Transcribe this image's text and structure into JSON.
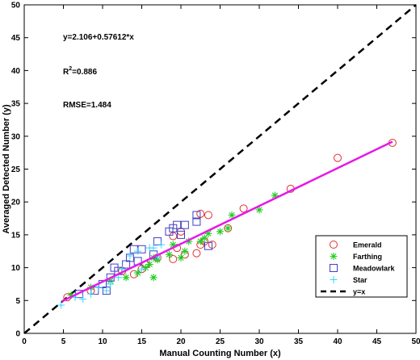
{
  "chart_data": {
    "type": "scatter",
    "title": "",
    "xlabel": "Manual Counting Number (x)",
    "ylabel": "Averaged Detected Number (y)",
    "xlim": [
      0,
      50
    ],
    "ylim": [
      0,
      50
    ],
    "xticks": [
      0,
      5,
      10,
      15,
      20,
      25,
      30,
      35,
      40,
      45,
      50
    ],
    "yticks": [
      0,
      5,
      10,
      15,
      20,
      25,
      30,
      35,
      40,
      45,
      50
    ],
    "grid": false,
    "legend_position": "bottom-right",
    "annotations": [
      "y=2.106+0.57612*x",
      "RMSE=1.484"
    ],
    "r2": {
      "prefix": "R",
      "superscript": "2",
      "suffix": "=0.886"
    },
    "fit": {
      "label": "",
      "intercept": 2.106,
      "slope": 0.57612,
      "x_range": [
        4.8,
        47
      ],
      "color": "#e619e6"
    },
    "reference": {
      "name": "y=x",
      "x_range": [
        0,
        50
      ],
      "color": "#000000"
    },
    "series": [
      {
        "name": "Emerald",
        "marker": "circle",
        "color": "#e03030",
        "points": [
          [
            5.5,
            5.5
          ],
          [
            8.5,
            6.5
          ],
          [
            12.5,
            9.5
          ],
          [
            14,
            9
          ],
          [
            15,
            9.8
          ],
          [
            15.5,
            10.5
          ],
          [
            17,
            11.5
          ],
          [
            19,
            11.3
          ],
          [
            19.5,
            13
          ],
          [
            20,
            15.5
          ],
          [
            20.5,
            12
          ],
          [
            22,
            12.2
          ],
          [
            22.5,
            18.2
          ],
          [
            23,
            14
          ],
          [
            23.5,
            18
          ],
          [
            24,
            13.5
          ],
          [
            22.5,
            13.5
          ],
          [
            26,
            16
          ],
          [
            28,
            19
          ],
          [
            34,
            22
          ],
          [
            40,
            26.7
          ],
          [
            47,
            29
          ],
          [
            19,
            14.8
          ]
        ]
      },
      {
        "name": "Farthing",
        "marker": "asterisk",
        "color": "#22cc22",
        "points": [
          [
            6,
            5.8
          ],
          [
            8.5,
            7
          ],
          [
            11,
            8
          ],
          [
            13,
            8.5
          ],
          [
            14.5,
            9.2
          ],
          [
            15.5,
            10
          ],
          [
            16,
            10.5
          ],
          [
            16.5,
            8.5
          ],
          [
            17,
            11.2
          ],
          [
            18.5,
            12
          ],
          [
            19,
            13.5
          ],
          [
            20,
            11.5
          ],
          [
            20.5,
            12.5
          ],
          [
            21,
            14
          ],
          [
            22.5,
            14
          ],
          [
            23,
            14.5
          ],
          [
            23.5,
            15.2
          ],
          [
            25,
            15.5
          ],
          [
            26,
            16
          ],
          [
            26.5,
            18
          ],
          [
            30,
            18.8
          ],
          [
            32,
            21
          ],
          [
            16.5,
            11.5
          ]
        ]
      },
      {
        "name": "Meadowlark",
        "marker": "square",
        "color": "#4040c8",
        "points": [
          [
            7,
            6
          ],
          [
            9,
            6.5
          ],
          [
            10,
            7.5
          ],
          [
            10.5,
            6.5
          ],
          [
            11,
            8.5
          ],
          [
            11.5,
            10
          ],
          [
            12,
            9.5
          ],
          [
            13,
            10.5
          ],
          [
            13.5,
            11.5
          ],
          [
            14,
            12.8
          ],
          [
            14.5,
            11
          ],
          [
            15,
            12.8
          ],
          [
            16.5,
            12
          ],
          [
            17,
            14
          ],
          [
            18.5,
            15.5
          ],
          [
            19,
            16
          ],
          [
            19.5,
            16.5
          ],
          [
            20,
            15
          ],
          [
            20.5,
            16.5
          ],
          [
            22,
            18
          ],
          [
            22,
            17
          ],
          [
            23.5,
            13.3
          ]
        ]
      },
      {
        "name": "Star",
        "marker": "plus",
        "color": "#33d6ff",
        "points": [
          [
            4.7,
            4.3
          ],
          [
            6.5,
            5.5
          ],
          [
            7.5,
            5.2
          ],
          [
            8.5,
            6
          ],
          [
            9.5,
            7
          ],
          [
            10.5,
            6.5
          ],
          [
            11,
            7.5
          ],
          [
            12,
            8.5
          ],
          [
            12.5,
            9.8
          ],
          [
            13.5,
            11.8
          ],
          [
            14.5,
            12.5
          ],
          [
            15,
            9.8
          ],
          [
            16,
            13
          ],
          [
            16.5,
            13
          ],
          [
            17,
            11.7
          ],
          [
            17.5,
            13.5
          ]
        ]
      }
    ]
  }
}
